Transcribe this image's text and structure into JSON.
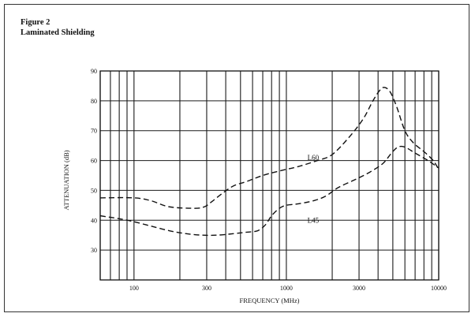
{
  "figure": {
    "number": "Figure 2",
    "title": "Laminated Shielding"
  },
  "chart_data": {
    "type": "line",
    "xlabel": "FREQUENCY (MHz)",
    "ylabel": "ATTENUATION (dB)",
    "xscale": "log",
    "xlim": [
      60,
      10000
    ],
    "ylim": [
      20,
      90
    ],
    "grid": true,
    "x_tick_labels": [
      {
        "value": 100,
        "label": "100"
      },
      {
        "value": 300,
        "label": "300"
      },
      {
        "value": 1000,
        "label": "1000"
      },
      {
        "value": 3000,
        "label": "3000"
      },
      {
        "value": 10000,
        "label": "10000"
      }
    ],
    "x_grid": [
      60,
      70,
      80,
      90,
      100,
      200,
      300,
      400,
      500,
      600,
      700,
      800,
      900,
      1000,
      2000,
      3000,
      4000,
      5000,
      6000,
      7000,
      8000,
      9000,
      10000
    ],
    "y_ticks": [
      30,
      40,
      50,
      60,
      70,
      80,
      90
    ],
    "series": [
      {
        "name": "L60",
        "label_at": {
          "x": 1500,
          "y": 61
        },
        "points": [
          [
            60,
            47.5
          ],
          [
            100,
            47.5
          ],
          [
            130,
            46.5
          ],
          [
            170,
            44.5
          ],
          [
            250,
            44
          ],
          [
            290,
            44.5
          ],
          [
            320,
            46
          ],
          [
            380,
            49
          ],
          [
            450,
            51.5
          ],
          [
            550,
            53
          ],
          [
            700,
            55
          ],
          [
            900,
            56.5
          ],
          [
            1200,
            58
          ],
          [
            1600,
            60
          ],
          [
            2000,
            62
          ],
          [
            2600,
            68
          ],
          [
            3200,
            74
          ],
          [
            3700,
            80
          ],
          [
            4100,
            83.5
          ],
          [
            4400,
            84.5
          ],
          [
            4800,
            83
          ],
          [
            5300,
            78
          ],
          [
            6000,
            70
          ],
          [
            6800,
            66
          ],
          [
            8000,
            63
          ],
          [
            9200,
            60
          ],
          [
            10000,
            57
          ]
        ]
      },
      {
        "name": "L45",
        "label_at": {
          "x": 1500,
          "y": 40
        },
        "points": [
          [
            60,
            41.5
          ],
          [
            80,
            40.5
          ],
          [
            100,
            39.5
          ],
          [
            130,
            38
          ],
          [
            170,
            36.5
          ],
          [
            220,
            35.5
          ],
          [
            280,
            35
          ],
          [
            350,
            35
          ],
          [
            450,
            35.5
          ],
          [
            550,
            36
          ],
          [
            650,
            36.5
          ],
          [
            730,
            38.5
          ],
          [
            800,
            41.5
          ],
          [
            900,
            44
          ],
          [
            1000,
            45
          ],
          [
            1200,
            45.5
          ],
          [
            1500,
            46.5
          ],
          [
            1800,
            48
          ],
          [
            2200,
            51
          ],
          [
            2800,
            53.5
          ],
          [
            3500,
            56
          ],
          [
            4300,
            59
          ],
          [
            4900,
            62.5
          ],
          [
            5400,
            64.5
          ],
          [
            6000,
            64.5
          ],
          [
            7000,
            62.5
          ],
          [
            8500,
            60
          ],
          [
            10000,
            57.5
          ]
        ]
      }
    ]
  }
}
